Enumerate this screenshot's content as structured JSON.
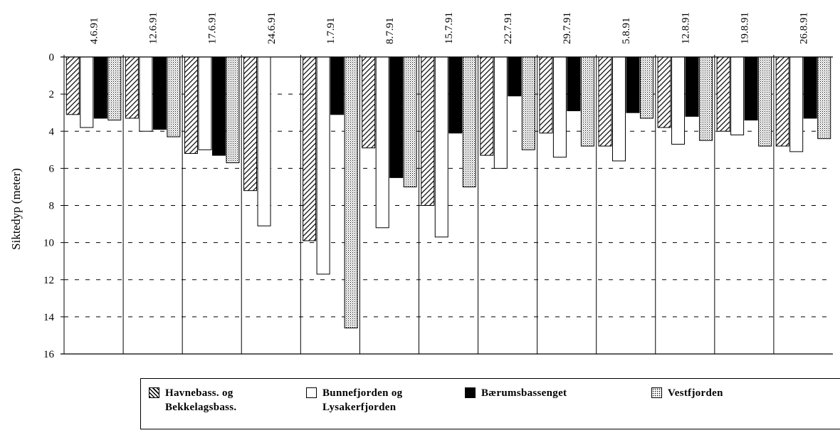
{
  "chart_data": {
    "type": "bar",
    "orientation": "downward",
    "title": "",
    "xlabel": "",
    "ylabel": "Siktedyp (meter)",
    "ylim": [
      0,
      16
    ],
    "yticks": [
      0,
      2,
      4,
      6,
      8,
      10,
      12,
      14,
      16
    ],
    "categories": [
      "4.6.91",
      "12.6.91",
      "17.6.91",
      "24.6.91",
      "1.7.91",
      "8.7.91",
      "15.7.91",
      "22.7.91",
      "29.7.91",
      "5.8.91",
      "12.8.91",
      "19.8.91",
      "26.8.91"
    ],
    "grid": "horizontal dashed",
    "legend_position": "bottom",
    "series": [
      {
        "name": "Havnebass. og\nBekkelagsbass.",
        "pattern": "hatched",
        "values": [
          3.1,
          3.3,
          5.2,
          7.2,
          9.9,
          4.9,
          8.0,
          5.3,
          4.1,
          4.8,
          3.8,
          4.0,
          4.8
        ]
      },
      {
        "name": "Bunnefjorden og\nLysakerfjorden",
        "pattern": "white",
        "values": [
          3.8,
          4.0,
          5.0,
          9.1,
          11.7,
          9.2,
          9.7,
          6.0,
          5.4,
          5.6,
          4.7,
          4.2,
          5.1
        ]
      },
      {
        "name": "Bærumsbassenget",
        "pattern": "black",
        "values": [
          3.3,
          3.9,
          5.3,
          null,
          3.1,
          6.5,
          4.1,
          2.1,
          2.9,
          3.0,
          3.2,
          3.4,
          3.3
        ]
      },
      {
        "name": "Vestfjorden",
        "pattern": "dotted",
        "values": [
          3.4,
          4.3,
          5.7,
          null,
          14.6,
          7.0,
          7.0,
          5.0,
          4.8,
          3.3,
          4.5,
          4.8,
          4.4
        ]
      }
    ]
  }
}
